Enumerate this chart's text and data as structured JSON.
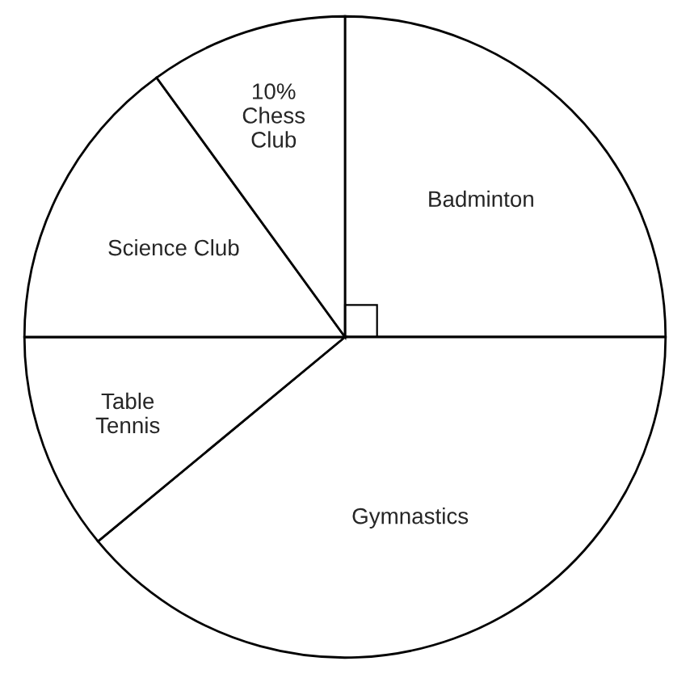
{
  "chart_data": {
    "type": "pie",
    "categories": [
      "Badminton",
      "Gymnastics",
      "Table Tennis",
      "Science Club",
      "Chess Club"
    ],
    "values": [
      25,
      39,
      11,
      15,
      10
    ],
    "colors": [
      "#ffffff",
      "#ffffff",
      "#ffffff",
      "#ffffff",
      "#ffffff"
    ],
    "value_labels": [
      null,
      null,
      null,
      null,
      "10%"
    ]
  }
}
